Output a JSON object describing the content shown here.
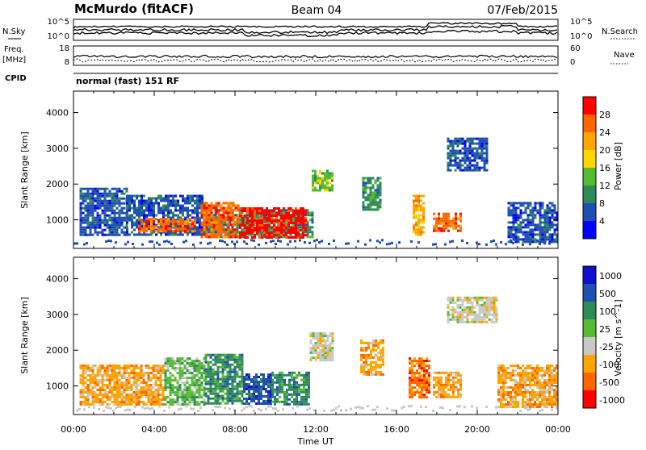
{
  "header": {
    "station": "McMurdo (fitACF)",
    "beam": "Beam 04",
    "date": "07/Feb/2015"
  },
  "top_panels": {
    "nsky_label": "N.Sky",
    "nsearch_label": "N.Search",
    "noise_ticks_left": [
      "10^5",
      "10^0"
    ],
    "noise_ticks_right": [
      "10^5",
      "10^0"
    ],
    "freq_label": "Freq.",
    "freq_unit": "[MHz]",
    "freq_ticks": [
      "18",
      "8"
    ],
    "nave_label": "Nave",
    "nave_ticks": [
      "60",
      "0"
    ],
    "cpid_label": "CPID",
    "cpid_text": "normal (fast) 151 RF"
  },
  "colors": {
    "power": [
      "#0000ff",
      "#1f4fb0",
      "#2e8b57",
      "#55bb33",
      "#ffd700",
      "#ffa500",
      "#ff6600",
      "#ff0000"
    ],
    "velocity": [
      "#ff0000",
      "#ff6600",
      "#ffa500",
      "#c8c8c8",
      "#55bb33",
      "#2e8b57",
      "#1f4fb0",
      "#1010cc"
    ]
  },
  "chart_data": [
    {
      "type": "heatmap",
      "name": "power",
      "ylabel": "Slant Range [km]",
      "yticks": [
        "4000",
        "3000",
        "2000",
        "1000"
      ],
      "ytick_values": [
        4000,
        3000,
        2000,
        1000
      ],
      "ylim": [
        200,
        4600
      ],
      "xlim_hours": [
        0,
        24
      ],
      "colorbar_label": "Power [dB]",
      "colorbar_ticks": [
        "28",
        "24",
        "20",
        "16",
        "12",
        "8",
        "4"
      ],
      "regions": [
        {
          "t0": 0.3,
          "t1": 2.6,
          "r0": 600,
          "r1": 1900,
          "level": 1
        },
        {
          "t0": 2.6,
          "t1": 6.5,
          "r0": 600,
          "r1": 1700,
          "level": 1
        },
        {
          "t0": 6.5,
          "t1": 11.8,
          "r0": 500,
          "r1": 1300,
          "level": 2
        },
        {
          "t0": 3.2,
          "t1": 6.0,
          "r0": 650,
          "r1": 1050,
          "level": 6
        },
        {
          "t0": 6.3,
          "t1": 8.2,
          "r0": 500,
          "r1": 1500,
          "level": 6
        },
        {
          "t0": 8.2,
          "t1": 11.5,
          "r0": 500,
          "r1": 1350,
          "level": 7
        },
        {
          "t0": 11.8,
          "t1": 12.8,
          "r0": 1800,
          "r1": 2400,
          "level": 3
        },
        {
          "t0": 14.3,
          "t1": 15.2,
          "r0": 1300,
          "r1": 2200,
          "level": 2
        },
        {
          "t0": 16.8,
          "t1": 17.4,
          "r0": 600,
          "r1": 1700,
          "level": 5
        },
        {
          "t0": 17.8,
          "t1": 19.2,
          "r0": 700,
          "r1": 1200,
          "level": 6
        },
        {
          "t0": 18.5,
          "t1": 20.5,
          "r0": 2400,
          "r1": 3300,
          "level": 1
        },
        {
          "t0": 21.5,
          "t1": 24.0,
          "r0": 400,
          "r1": 1500,
          "level": 1
        }
      ]
    },
    {
      "type": "heatmap",
      "name": "velocity",
      "xlabel": "Time UT",
      "xticks": [
        "00:00",
        "04:00",
        "08:00",
        "12:00",
        "16:00",
        "20:00",
        "00:00"
      ],
      "xtick_hours": [
        0,
        4,
        8,
        12,
        16,
        20,
        24
      ],
      "ylabel": "Slant Range [km]",
      "yticks": [
        "4000",
        "3000",
        "2000",
        "1000"
      ],
      "ytick_values": [
        4000,
        3000,
        2000,
        1000
      ],
      "ylim": [
        200,
        4600
      ],
      "xlim_hours": [
        0,
        24
      ],
      "colorbar_label": "Velocity [m s^-1]",
      "colorbar_ticks": [
        "1000",
        "500",
        "100",
        "25",
        "-25",
        "-100",
        "-500",
        "-1000"
      ],
      "regions": [
        {
          "t0": 0.3,
          "t1": 4.5,
          "r0": 500,
          "r1": 1600,
          "level": 2
        },
        {
          "t0": 4.5,
          "t1": 6.5,
          "r0": 500,
          "r1": 1800,
          "level": 4
        },
        {
          "t0": 6.5,
          "t1": 8.4,
          "r0": 500,
          "r1": 1900,
          "level": 5
        },
        {
          "t0": 8.4,
          "t1": 9.8,
          "r0": 500,
          "r1": 1350,
          "level": 6
        },
        {
          "t0": 9.8,
          "t1": 11.7,
          "r0": 500,
          "r1": 1400,
          "level": 5
        },
        {
          "t0": 11.7,
          "t1": 12.8,
          "r0": 1700,
          "r1": 2500,
          "level": 3
        },
        {
          "t0": 14.2,
          "t1": 15.3,
          "r0": 1300,
          "r1": 2300,
          "level": 2
        },
        {
          "t0": 16.6,
          "t1": 17.6,
          "r0": 700,
          "r1": 1800,
          "level": 1
        },
        {
          "t0": 17.8,
          "t1": 19.2,
          "r0": 700,
          "r1": 1400,
          "level": 2
        },
        {
          "t0": 18.5,
          "t1": 21.0,
          "r0": 2800,
          "r1": 3500,
          "level": 3
        },
        {
          "t0": 21.0,
          "t1": 24.0,
          "r0": 400,
          "r1": 1600,
          "level": 2
        }
      ]
    }
  ]
}
